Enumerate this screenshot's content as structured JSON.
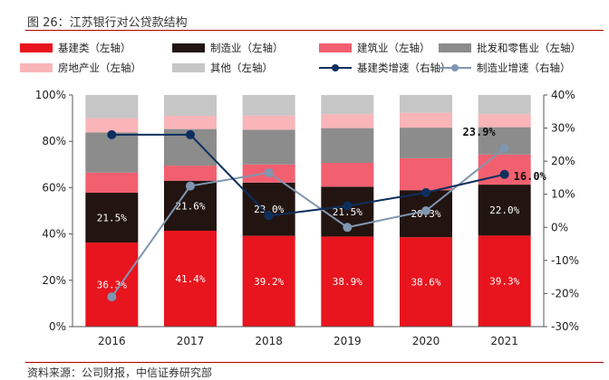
{
  "title": "图 26：江苏银行对公贷款结构",
  "source": "资料来源：公司财报，中信证券研究部",
  "colors": {
    "jijian": "#e8141e",
    "zhizao": "#221410",
    "jianzhu": "#f26070",
    "pifa": "#8c8c8c",
    "fangdichan": "#f9b5b8",
    "qita": "#c6c6c6",
    "line_jijian": "#0d2f5e",
    "line_zhizao": "#8096b0",
    "rule": "#b00000"
  },
  "legend": [
    {
      "label": "基建类（左轴）",
      "kind": "bar",
      "color": "#e8141e"
    },
    {
      "label": "制造业（左轴）",
      "kind": "bar",
      "color": "#221410"
    },
    {
      "label": "建筑业（左轴）",
      "kind": "bar",
      "color": "#f26070"
    },
    {
      "label": "批发和零售业（左轴）",
      "kind": "bar",
      "color": "#8c8c8c"
    },
    {
      "label": "房地产业（左轴）",
      "kind": "bar",
      "color": "#f9b5b8"
    },
    {
      "label": "其他（左轴）",
      "kind": "bar",
      "color": "#c6c6c6"
    },
    {
      "label": "基建类增速（右轴）",
      "kind": "line",
      "color": "#0d2f5e"
    },
    {
      "label": "制造业增速（右轴）",
      "kind": "line",
      "color": "#8096b0"
    }
  ],
  "chart_data": {
    "type": "bar",
    "stacked": true,
    "categories": [
      "2016",
      "2017",
      "2018",
      "2019",
      "2020",
      "2021"
    ],
    "series": [
      {
        "name": "基建类（左轴）",
        "axis": "left",
        "values": [
          36.3,
          41.4,
          39.2,
          38.9,
          38.6,
          39.3
        ]
      },
      {
        "name": "制造业（左轴）",
        "axis": "left",
        "values": [
          21.5,
          21.6,
          23.0,
          21.5,
          20.3,
          22.0
        ]
      },
      {
        "name": "建筑业（左轴）",
        "axis": "left",
        "values": [
          8.7,
          6.5,
          7.8,
          10.3,
          13.8,
          13.0
        ]
      },
      {
        "name": "批发和零售业（左轴）",
        "axis": "left",
        "values": [
          17.3,
          15.8,
          15.0,
          15.0,
          13.2,
          11.8
        ]
      },
      {
        "name": "房地产业（左轴）",
        "axis": "left",
        "values": [
          6.2,
          5.7,
          6.1,
          6.0,
          6.4,
          5.6
        ]
      },
      {
        "name": "其他（左轴）",
        "axis": "left",
        "values": [
          10.0,
          9.0,
          8.9,
          8.3,
          7.7,
          8.3
        ]
      },
      {
        "name": "基建类增速（右轴）",
        "axis": "right",
        "type": "line",
        "values": [
          28.0,
          28.0,
          3.5,
          6.5,
          10.5,
          16.0
        ]
      },
      {
        "name": "制造业增速（右轴）",
        "axis": "right",
        "type": "line",
        "values": [
          -21.0,
          12.5,
          16.5,
          0.0,
          5.0,
          23.9
        ]
      }
    ],
    "bar_labels": {
      "基建类（左轴）": [
        "36.3%",
        "41.4%",
        "39.2%",
        "38.9%",
        "38.6%",
        "39.3%"
      ],
      "制造业（左轴）": [
        "21.5%",
        "21.6%",
        "23.0%",
        "21.5%",
        "20.3%",
        "22.0%"
      ]
    },
    "point_labels": [
      {
        "series": "制造业增速（右轴）",
        "index": 5,
        "text": "23.9%"
      },
      {
        "series": "基建类增速（右轴）",
        "index": 5,
        "text": "16.0%"
      }
    ],
    "y_left": {
      "min": 0,
      "max": 100,
      "ticks": [
        "0%",
        "20%",
        "40%",
        "60%",
        "80%",
        "100%"
      ]
    },
    "y_right": {
      "min": -30,
      "max": 40,
      "ticks": [
        "-30%",
        "-20%",
        "-10%",
        "0%",
        "10%",
        "20%",
        "30%",
        "40%"
      ]
    },
    "grid": false,
    "legend_position": "top"
  }
}
